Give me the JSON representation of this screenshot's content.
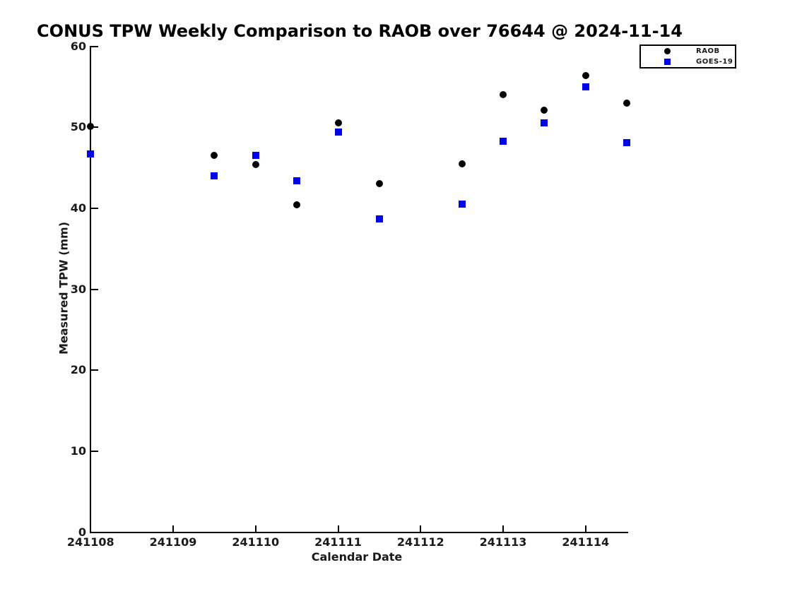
{
  "chart_data": {
    "type": "scatter",
    "title": "CONUS TPW Weekly Comparison to RAOB over 76644 @ 2024-11-14",
    "xlabel": "Calendar Date",
    "ylabel": "Measured TPW (mm)",
    "xlim": [
      241108,
      241114.51
    ],
    "ylim": [
      0,
      60
    ],
    "xticks": [
      241108,
      241109,
      241110,
      241111,
      241112,
      241113,
      241114
    ],
    "xtick_labels": [
      "241108",
      "241109",
      "241110",
      "241111",
      "241112",
      "241113",
      "241114"
    ],
    "yticks": [
      0,
      10,
      20,
      30,
      40,
      50,
      60
    ],
    "ytick_labels": [
      "0",
      "10",
      "20",
      "30",
      "40",
      "50",
      "60"
    ],
    "grid": false,
    "legend_position": "upper-right-outside",
    "x": [
      241108,
      241109.5,
      241110,
      241110.5,
      241111,
      241111.5,
      241112.5,
      241113,
      241113.5,
      241114,
      241114.5
    ],
    "series": [
      {
        "name": "RAOB",
        "marker": "circle",
        "color": "#000000",
        "values": [
          50.1,
          46.5,
          45.4,
          40.4,
          50.5,
          43.0,
          45.5,
          54.0,
          52.1,
          56.4,
          53.0
        ]
      },
      {
        "name": "GOES-19",
        "marker": "square",
        "color": "#0000ee",
        "values": [
          46.7,
          44.0,
          46.5,
          43.4,
          49.4,
          38.7,
          40.5,
          48.3,
          50.5,
          55.0,
          48.1
        ]
      }
    ]
  },
  "colors": {
    "background": "#ffffff",
    "axis": "#000000",
    "raob": "#000000",
    "goes19": "#0000ee"
  }
}
